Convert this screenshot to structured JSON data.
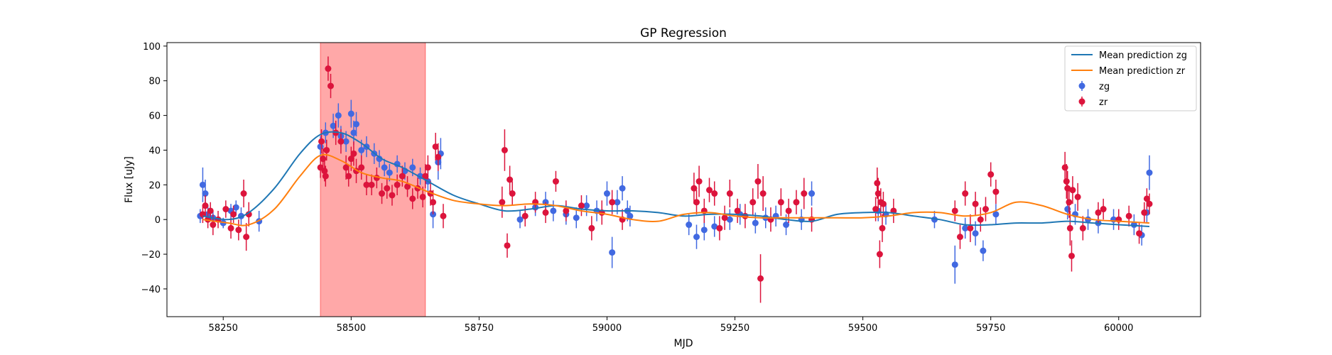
{
  "chart_data": {
    "type": "scatter",
    "title": "GP Regression",
    "xlabel": "MJD",
    "ylabel": "Flux [uJy]",
    "xlim": [
      58140,
      60160
    ],
    "ylim": [
      -56,
      102
    ],
    "xticks": [
      "58250",
      "58500",
      "58750",
      "59000",
      "59250",
      "59500",
      "59750",
      "60000"
    ],
    "yticks": [
      "−40",
      "−20",
      "0",
      "20",
      "40",
      "60",
      "80",
      "100"
    ],
    "xtick_values": [
      58250,
      58500,
      58750,
      59000,
      59250,
      59500,
      59750,
      60000
    ],
    "ytick_values": [
      -40,
      -20,
      0,
      20,
      40,
      60,
      80,
      100
    ],
    "shaded_region": {
      "x": [
        58440,
        58645
      ],
      "color": "#ff9999"
    },
    "legend_position": "top-right",
    "series": [
      {
        "name": "Mean prediction zg",
        "kind": "line",
        "color": "#1f77b4",
        "x": [
          58210,
          58260,
          58300,
          58350,
          58400,
          58440,
          58480,
          58520,
          58560,
          58600,
          58650,
          58700,
          58750,
          58800,
          58850,
          58900,
          58950,
          59000,
          59050,
          59100,
          59150,
          59200,
          59250,
          59300,
          59350,
          59400,
          59450,
          59500,
          59550,
          59600,
          59650,
          59700,
          59750,
          59800,
          59850,
          59900,
          59950,
          60000,
          60060
        ],
        "y": [
          2,
          0,
          4,
          18,
          38,
          49,
          50,
          44,
          35,
          30,
          22,
          14,
          9,
          5,
          6,
          8,
          6,
          5,
          5,
          4,
          2,
          3,
          3,
          2,
          0,
          -1,
          3,
          4,
          4,
          2,
          0,
          -3,
          -3,
          -2,
          -2,
          -1,
          -2,
          -3,
          -4
        ]
      },
      {
        "name": "Mean prediction zr",
        "kind": "line",
        "color": "#ff7f0e",
        "x": [
          58210,
          58260,
          58300,
          58350,
          58400,
          58440,
          58480,
          58520,
          58560,
          58600,
          58650,
          58700,
          58750,
          58800,
          58850,
          58900,
          58950,
          59000,
          59050,
          59100,
          59150,
          59200,
          59250,
          59300,
          59350,
          59400,
          59450,
          59500,
          59550,
          59600,
          59650,
          59700,
          59750,
          59800,
          59850,
          59900,
          59950,
          60000,
          60060
        ],
        "y": [
          0,
          -2,
          -3,
          6,
          25,
          37,
          34,
          27,
          24,
          22,
          16,
          11,
          9,
          8,
          9,
          8,
          5,
          3,
          0,
          -1,
          3,
          4,
          2,
          1,
          1,
          1,
          1,
          1,
          2,
          4,
          4,
          2,
          4,
          10,
          8,
          3,
          0,
          -1,
          -2
        ]
      },
      {
        "name": "zg",
        "kind": "errorbar",
        "color": "#4169e1",
        "x": [
          58205,
          58210,
          58215,
          58220,
          58230,
          58250,
          58265,
          58275,
          58285,
          58320,
          58440,
          58450,
          58465,
          58475,
          58480,
          58490,
          58500,
          58505,
          58510,
          58520,
          58530,
          58545,
          58555,
          58565,
          58575,
          58590,
          58605,
          58620,
          58635,
          58650,
          58660,
          58670,
          58675,
          58830,
          58860,
          58880,
          58895,
          58920,
          58940,
          58960,
          58980,
          59000,
          59010,
          59020,
          59030,
          59040,
          59045,
          59160,
          59175,
          59190,
          59210,
          59240,
          59260,
          59290,
          59310,
          59330,
          59350,
          59380,
          59400,
          59530,
          59545,
          59640,
          59680,
          59700,
          59720,
          59735,
          59760,
          59900,
          59915,
          59940,
          59960,
          59990,
          60030,
          60045,
          60055,
          60060
        ],
        "y": [
          2,
          20,
          15,
          3,
          1,
          -2,
          5,
          7,
          2,
          -1,
          42,
          50,
          54,
          60,
          48,
          45,
          61,
          50,
          55,
          40,
          42,
          38,
          35,
          30,
          27,
          32,
          28,
          30,
          25,
          22,
          3,
          33,
          38,
          0,
          7,
          10,
          5,
          3,
          1,
          8,
          5,
          15,
          -19,
          10,
          18,
          5,
          2,
          -3,
          -10,
          -6,
          -4,
          0,
          3,
          -2,
          1,
          2,
          -3,
          0,
          15,
          5,
          3,
          0,
          -26,
          -5,
          -8,
          -18,
          3,
          6,
          3,
          0,
          -2,
          0,
          -3,
          -9,
          4,
          27
        ],
        "err": [
          4,
          10,
          8,
          5,
          4,
          3,
          4,
          4,
          5,
          6,
          6,
          6,
          7,
          7,
          6,
          6,
          8,
          7,
          7,
          6,
          6,
          6,
          5,
          5,
          5,
          5,
          5,
          5,
          5,
          6,
          8,
          10,
          9,
          5,
          5,
          6,
          6,
          6,
          6,
          6,
          6,
          7,
          9,
          7,
          7,
          6,
          6,
          6,
          7,
          6,
          6,
          6,
          6,
          6,
          6,
          6,
          6,
          6,
          7,
          6,
          6,
          5,
          11,
          6,
          7,
          6,
          6,
          6,
          6,
          6,
          6,
          6,
          6,
          6,
          6,
          10
        ]
      },
      {
        "name": "zr",
        "kind": "errorbar",
        "color": "#dc143c",
        "x": [
          58210,
          58215,
          58220,
          58225,
          58230,
          58240,
          58255,
          58265,
          58270,
          58280,
          58290,
          58295,
          58300,
          58440,
          58442,
          58445,
          58448,
          58450,
          58452,
          58455,
          58460,
          58470,
          58480,
          58490,
          58495,
          58500,
          58505,
          58510,
          58520,
          58530,
          58540,
          58550,
          58560,
          58570,
          58580,
          58590,
          58600,
          58610,
          58620,
          58630,
          58640,
          58645,
          58650,
          58655,
          58660,
          58665,
          58670,
          58680,
          58795,
          58800,
          58805,
          58810,
          58815,
          58840,
          58860,
          58880,
          58900,
          58920,
          58950,
          58970,
          58990,
          59010,
          59030,
          59170,
          59175,
          59180,
          59190,
          59200,
          59210,
          59220,
          59230,
          59240,
          59255,
          59270,
          59285,
          59295,
          59300,
          59305,
          59320,
          59340,
          59355,
          59370,
          59385,
          59400,
          59525,
          59528,
          59530,
          59533,
          59535,
          59538,
          59540,
          59560,
          59680,
          59690,
          59700,
          59710,
          59720,
          59730,
          59740,
          59750,
          59760,
          59895,
          59898,
          59900,
          59903,
          59905,
          59908,
          59910,
          59920,
          59930,
          59960,
          59970,
          60000,
          60020,
          60040,
          60050,
          60055,
          60060
        ],
        "y": [
          3,
          8,
          0,
          5,
          -3,
          0,
          6,
          -5,
          3,
          -6,
          15,
          -10,
          3,
          30,
          45,
          35,
          28,
          25,
          40,
          87,
          77,
          50,
          45,
          30,
          25,
          35,
          38,
          28,
          30,
          20,
          20,
          24,
          15,
          18,
          14,
          20,
          25,
          19,
          12,
          18,
          13,
          25,
          30,
          15,
          10,
          42,
          36,
          2,
          10,
          40,
          -15,
          23,
          15,
          2,
          10,
          4,
          22,
          5,
          8,
          -5,
          4,
          10,
          0,
          18,
          10,
          22,
          5,
          17,
          15,
          -5,
          1,
          15,
          5,
          2,
          10,
          22,
          -34,
          15,
          0,
          10,
          5,
          10,
          15,
          0,
          6,
          21,
          15,
          -20,
          10,
          -5,
          9,
          5,
          5,
          -10,
          15,
          -5,
          9,
          0,
          6,
          26,
          16,
          30,
          22,
          18,
          10,
          -5,
          -21,
          17,
          13,
          -5,
          4,
          6,
          0,
          2,
          -8,
          4,
          12,
          9
        ],
        "err": [
          5,
          6,
          5,
          5,
          6,
          5,
          5,
          6,
          5,
          6,
          8,
          8,
          7,
          6,
          7,
          6,
          6,
          6,
          6,
          7,
          7,
          7,
          7,
          7,
          6,
          7,
          7,
          7,
          7,
          6,
          6,
          6,
          6,
          6,
          6,
          6,
          6,
          6,
          6,
          6,
          6,
          7,
          7,
          7,
          7,
          8,
          8,
          7,
          9,
          12,
          7,
          8,
          7,
          6,
          6,
          6,
          6,
          6,
          6,
          7,
          7,
          7,
          6,
          9,
          7,
          9,
          7,
          7,
          7,
          7,
          7,
          8,
          7,
          7,
          8,
          10,
          14,
          10,
          7,
          8,
          7,
          7,
          9,
          7,
          7,
          9,
          9,
          8,
          8,
          8,
          7,
          7,
          6,
          7,
          7,
          8,
          7,
          7,
          7,
          7,
          7,
          9,
          10,
          10,
          9,
          10,
          9,
          8,
          8,
          7,
          6,
          6,
          6,
          6,
          6,
          6,
          6,
          6
        ]
      }
    ]
  }
}
